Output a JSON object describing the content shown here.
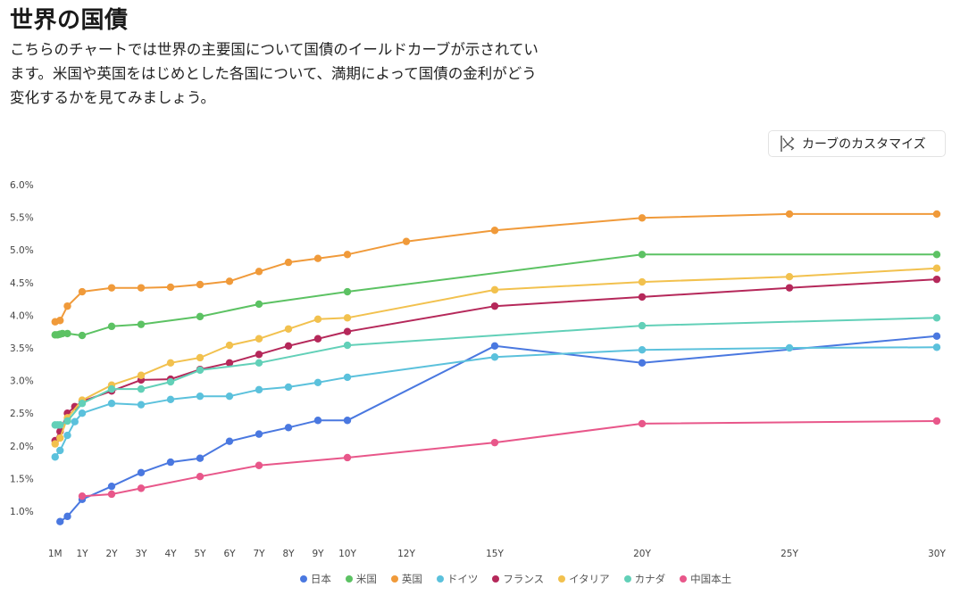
{
  "page": {
    "title": "世界の国債",
    "description": "こちらのチャートでは世界の主要国について国債のイールドカーブが示されています。米国や英国をはじめとした各国について、満期によって国債の金利がどう変化するかを見てみましょう。",
    "customize_button": {
      "label": "カーブのカスタマイズ",
      "icon": "curve-customize-icon"
    }
  },
  "chart_data": {
    "type": "line",
    "title": "世界の国債",
    "xlabel": "",
    "ylabel": "",
    "ylim": [
      0.6,
      6.0
    ],
    "y_ticks": [
      6.0,
      5.5,
      5.0,
      4.5,
      4.0,
      3.5,
      3.0,
      2.5,
      2.0,
      1.5,
      1.0
    ],
    "y_tick_labels": [
      "6.0%",
      "5.5%",
      "5.0%",
      "4.5%",
      "4.0%",
      "3.5%",
      "3.0%",
      "2.5%",
      "2.0%",
      "1.5%",
      "1.0%"
    ],
    "x_unit": "years",
    "xlim": [
      0.083,
      30
    ],
    "x_ticks": [
      0.083,
      1,
      2,
      3,
      4,
      5,
      6,
      7,
      8,
      9,
      10,
      12,
      15,
      20,
      25,
      30
    ],
    "x_tick_labels": [
      "1M",
      "1Y",
      "2Y",
      "3Y",
      "4Y",
      "5Y",
      "6Y",
      "7Y",
      "8Y",
      "9Y",
      "10Y",
      "12Y",
      "15Y",
      "20Y",
      "25Y",
      "30Y"
    ],
    "grid": false,
    "legend_position": "bottom-center",
    "series": [
      {
        "name": "日本",
        "color": "#4a78e0",
        "x": [
          0.25,
          0.5,
          1,
          2,
          3,
          4,
          5,
          6,
          7,
          8,
          9,
          10,
          15,
          20,
          30
        ],
        "y": [
          0.84,
          0.92,
          1.18,
          1.38,
          1.59,
          1.75,
          1.81,
          2.07,
          2.18,
          2.28,
          2.39,
          2.39,
          3.53,
          3.27,
          3.68
        ]
      },
      {
        "name": "米国",
        "color": "#5cc263",
        "x": [
          0.083,
          0.167,
          0.25,
          0.33,
          0.5,
          1,
          2,
          3,
          5,
          7,
          10,
          20,
          30
        ],
        "y": [
          3.7,
          3.7,
          3.71,
          3.72,
          3.72,
          3.69,
          3.83,
          3.86,
          3.98,
          4.17,
          4.36,
          4.93,
          4.93
        ]
      },
      {
        "name": "英国",
        "color": "#f09a3a",
        "x": [
          0.083,
          0.25,
          0.5,
          1,
          2,
          3,
          4,
          5,
          6,
          7,
          8,
          9,
          10,
          12,
          15,
          20,
          25,
          30
        ],
        "y": [
          3.9,
          3.92,
          4.14,
          4.36,
          4.42,
          4.42,
          4.43,
          4.47,
          4.52,
          4.67,
          4.81,
          4.87,
          4.93,
          5.13,
          5.3,
          5.49,
          5.55,
          5.55
        ]
      },
      {
        "name": "ドイツ",
        "color": "#5bc1dc",
        "x": [
          0.083,
          0.25,
          0.5,
          0.75,
          1,
          2,
          3,
          4,
          5,
          6,
          7,
          8,
          9,
          10,
          15,
          20,
          25,
          30
        ],
        "y": [
          1.83,
          1.93,
          2.16,
          2.37,
          2.5,
          2.65,
          2.63,
          2.71,
          2.76,
          2.76,
          2.86,
          2.9,
          2.97,
          3.05,
          3.36,
          3.47,
          3.5,
          3.51
        ]
      },
      {
        "name": "フランス",
        "color": "#b5285a",
        "x": [
          0.083,
          0.25,
          0.5,
          0.75,
          1,
          2,
          3,
          4,
          5,
          6,
          7,
          8,
          9,
          10,
          15,
          20,
          25,
          30
        ],
        "y": [
          2.08,
          2.22,
          2.5,
          2.6,
          2.68,
          2.84,
          3.01,
          3.02,
          3.17,
          3.27,
          3.4,
          3.53,
          3.64,
          3.75,
          4.14,
          4.28,
          4.42,
          4.55
        ]
      },
      {
        "name": "イタリア",
        "color": "#f2c14e",
        "x": [
          0.083,
          0.25,
          0.5,
          1,
          2,
          3,
          4,
          5,
          6,
          7,
          8,
          9,
          10,
          15,
          20,
          25,
          30
        ],
        "y": [
          2.03,
          2.12,
          2.43,
          2.7,
          2.93,
          3.08,
          3.27,
          3.35,
          3.54,
          3.64,
          3.79,
          3.94,
          3.96,
          4.39,
          4.51,
          4.59,
          4.72
        ]
      },
      {
        "name": "カナダ",
        "color": "#62d0b8",
        "x": [
          0.083,
          0.167,
          0.25,
          0.5,
          1,
          2,
          3,
          4,
          5,
          7,
          10,
          20,
          30
        ],
        "y": [
          2.32,
          2.32,
          2.32,
          2.38,
          2.65,
          2.87,
          2.87,
          2.98,
          3.16,
          3.27,
          3.54,
          3.84,
          3.96
        ]
      },
      {
        "name": "中国本土",
        "color": "#e8578a",
        "x": [
          1,
          2,
          3,
          5,
          7,
          10,
          15,
          20,
          30
        ],
        "y": [
          1.23,
          1.26,
          1.35,
          1.53,
          1.7,
          1.82,
          2.05,
          2.34,
          2.38
        ]
      }
    ]
  }
}
